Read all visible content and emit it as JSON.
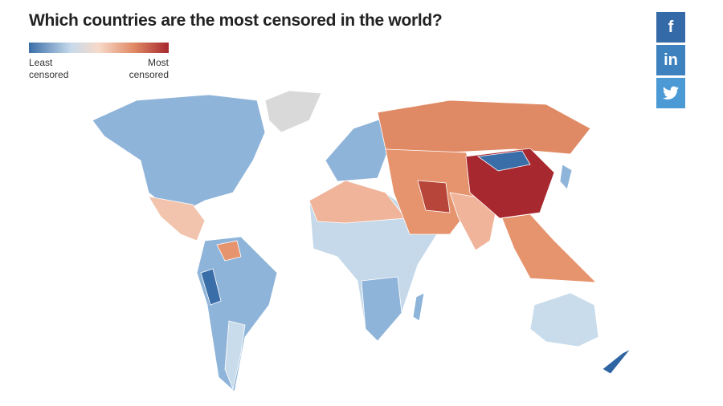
{
  "title": "Which countries are the most censored in the world?",
  "legend": {
    "low": "Least censored",
    "high": "Most censored"
  },
  "share": {
    "facebook": "f",
    "linkedin": "in"
  }
}
